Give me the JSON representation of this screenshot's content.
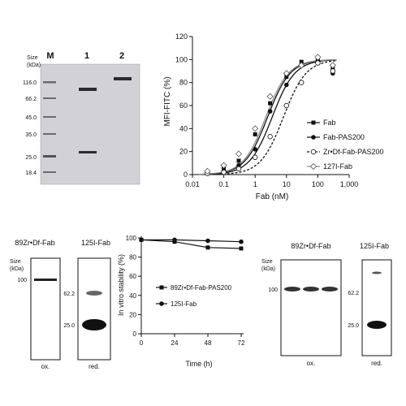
{
  "gel_top": {
    "size_label": "Size",
    "unit_label": "(kDa)",
    "lanes": [
      "M",
      "1",
      "2"
    ],
    "markers": [
      "116.0",
      "66.2",
      "45.0",
      "35.0",
      "25.0",
      "18.4"
    ]
  },
  "chart_data": [
    {
      "type": "line",
      "xlabel": "Fab (nM)",
      "ylabel": "MFI-FITC (%)",
      "xscale": "log",
      "xlim": [
        0.01,
        1000
      ],
      "ylim": [
        0,
        120
      ],
      "xticks": [
        "0.01",
        "0.1",
        "1",
        "10",
        "100",
        "1,000"
      ],
      "yticks": [
        "0",
        "20",
        "40",
        "60",
        "80",
        "100",
        "120"
      ],
      "legend_position": "right",
      "series": [
        {
          "name": "Fab",
          "marker": "square",
          "ec50": 2.5,
          "points": [
            [
              0.03,
              2
            ],
            [
              0.1,
              5
            ],
            [
              0.3,
              12
            ],
            [
              1,
              35
            ],
            [
              3,
              62
            ],
            [
              10,
              85
            ],
            [
              30,
              98
            ],
            [
              100,
              100
            ],
            [
              300,
              92
            ]
          ]
        },
        {
          "name": "Fab-PAS200",
          "marker": "circle",
          "ec50": 3.5,
          "points": [
            [
              0.03,
              1
            ],
            [
              0.1,
              3
            ],
            [
              0.3,
              8
            ],
            [
              1,
              22
            ],
            [
              3,
              55
            ],
            [
              10,
              78
            ],
            [
              30,
              95
            ],
            [
              100,
              99
            ],
            [
              300,
              88
            ]
          ]
        },
        {
          "name": "Zr•Df-Fab-PAS200",
          "marker": "open-circle",
          "ec50": 8,
          "points": [
            [
              0.03,
              1
            ],
            [
              0.1,
              2
            ],
            [
              0.3,
              5
            ],
            [
              1,
              15
            ],
            [
              3,
              33
            ],
            [
              10,
              60
            ],
            [
              30,
              80
            ],
            [
              100,
              97
            ],
            [
              300,
              90
            ]
          ]
        },
        {
          "name": "127I-Fab",
          "marker": "diamond",
          "ec50": 2.2,
          "points": [
            [
              0.03,
              3
            ],
            [
              0.1,
              8
            ],
            [
              0.3,
              18
            ],
            [
              1,
              40
            ],
            [
              3,
              68
            ],
            [
              10,
              88
            ],
            [
              30,
              95
            ],
            [
              100,
              102
            ],
            [
              300,
              95
            ]
          ]
        }
      ]
    },
    {
      "type": "line",
      "xlabel": "Time (h)",
      "ylabel": "In vitro stability (%)",
      "xlim": [
        0,
        72
      ],
      "ylim": [
        0,
        100
      ],
      "xticks": [
        "0",
        "24",
        "48",
        "72"
      ],
      "yticks": [
        "0",
        "20",
        "40",
        "60",
        "80",
        "100"
      ],
      "legend_position": "center",
      "series": [
        {
          "name": "89Zr•Df-Fab-PAS200",
          "marker": "square",
          "points": [
            [
              0,
              98
            ],
            [
              24,
              96
            ],
            [
              48,
              90
            ],
            [
              72,
              89
            ]
          ]
        },
        {
          "name": "125I-Fab",
          "marker": "circle",
          "points": [
            [
              0,
              98
            ],
            [
              24,
              98
            ],
            [
              48,
              97
            ],
            [
              72,
              96
            ]
          ]
        }
      ]
    }
  ],
  "blots_left": {
    "zr_title": "89Zr•Df-Fab",
    "i_title": "125I-Fab",
    "size_label": "Size",
    "unit_label": "(kDa)",
    "zr_marker": "100",
    "i_markers": [
      "62.2",
      "25.0"
    ],
    "zr_caption": "ox.",
    "i_caption": "red."
  },
  "blots_right": {
    "zr_title": "89Zr•Df-Fab",
    "i_title": "125I-Fab",
    "size_label": "Size",
    "unit_label": "(kDa)",
    "zr_marker": "100",
    "i_markers": [
      "62.2",
      "25.0"
    ],
    "zr_caption": "ox.",
    "i_caption": "red."
  }
}
